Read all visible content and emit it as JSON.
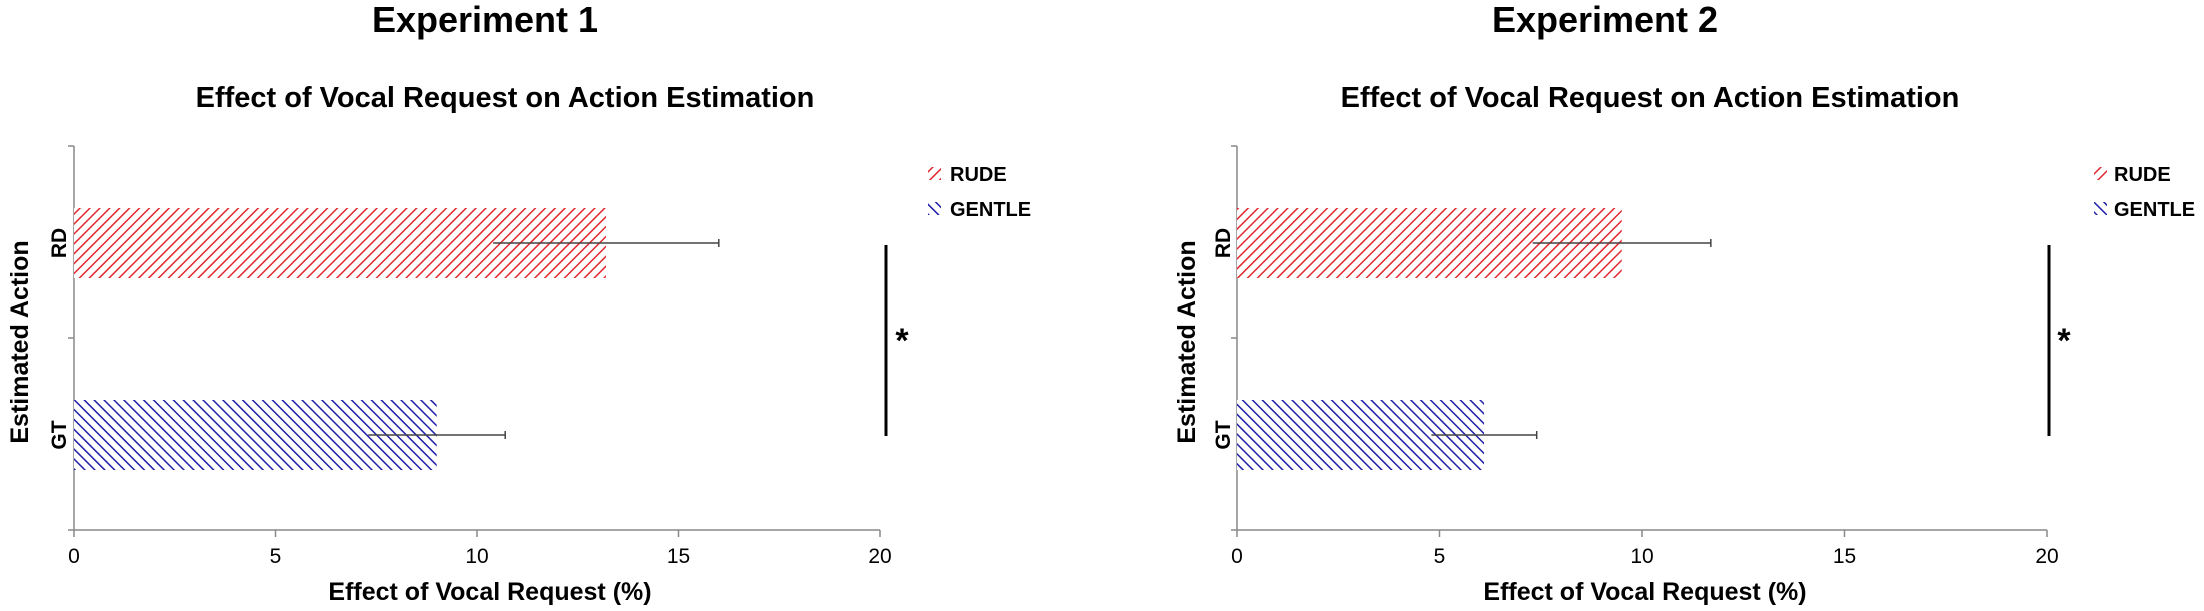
{
  "colors": {
    "rude": "#e0282e",
    "gentle": "#1f1fa8",
    "axis": "#888888",
    "text": "#000000"
  },
  "chart_data": [
    {
      "type": "bar",
      "orientation": "horizontal",
      "panel_title": "Experiment 1",
      "title": "Effect of Vocal Request on Action Estimation",
      "xlabel": "Effect of Vocal Request (%)",
      "ylabel": "Estimated Action",
      "categories": [
        "RD",
        "GT"
      ],
      "series": [
        {
          "name": "RUDE",
          "category": "RD",
          "value": 13.2,
          "error": 2.8,
          "pattern": "rude"
        },
        {
          "name": "GENTLE",
          "category": "GT",
          "value": 9.0,
          "error": 1.7,
          "pattern": "gentle"
        }
      ],
      "xlim": [
        0,
        20
      ],
      "xticks": [
        "0",
        "5",
        "10",
        "15",
        "20"
      ],
      "legend": [
        "RUDE",
        "GENTLE"
      ],
      "legend_position": "top-right",
      "significance": "*"
    },
    {
      "type": "bar",
      "orientation": "horizontal",
      "panel_title": "Experiment 2",
      "title": "Effect of Vocal Request on Action Estimation",
      "xlabel": "Effect of Vocal Request (%)",
      "ylabel": "Estimated Action",
      "categories": [
        "RD",
        "GT"
      ],
      "series": [
        {
          "name": "RUDE",
          "category": "RD",
          "value": 9.5,
          "error": 2.2,
          "pattern": "rude"
        },
        {
          "name": "GENTLE",
          "category": "GT",
          "value": 6.1,
          "error": 1.3,
          "pattern": "gentle"
        }
      ],
      "xlim": [
        0,
        20
      ],
      "xticks": [
        "0",
        "5",
        "10",
        "15",
        "20"
      ],
      "legend": [
        "RUDE",
        "GENTLE"
      ],
      "legend_position": "top-right",
      "significance": "*"
    }
  ]
}
